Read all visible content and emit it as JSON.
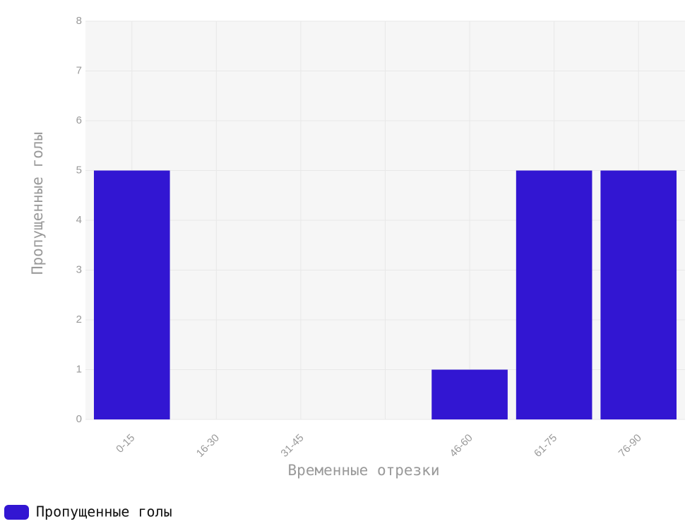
{
  "chart_data": {
    "type": "bar",
    "categories": [
      "0-15",
      "16-30",
      "31-45",
      null,
      "46-60",
      "61-75",
      "76-90"
    ],
    "series": [
      {
        "name": "Пропущенные голы",
        "color": "#3216d2",
        "values": [
          5,
          0,
          0,
          0,
          1,
          5,
          5
        ]
      }
    ],
    "x_label": "Временные отрезки",
    "y_label": "Пропущенные голы",
    "ylim": [
      0,
      8
    ],
    "yticks": [
      0,
      1,
      2,
      3,
      4,
      5,
      6,
      7,
      8
    ],
    "grid": true,
    "legend": "bottom-left"
  }
}
